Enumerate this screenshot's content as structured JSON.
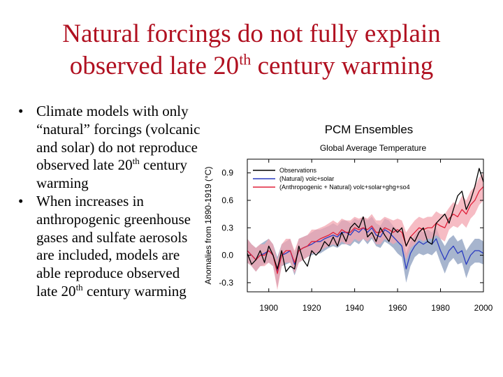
{
  "slide": {
    "title_line1": "Natural forcings do not fully explain",
    "title_line2_pre": "observed late 20",
    "title_line2_sup": "th",
    "title_line2_post": " century warming",
    "bullets": [
      {
        "pre": "Climate models with only “natural” forcings (volcanic and solar) do not reproduce observed late 20",
        "sup": "th",
        "post": " century warming"
      },
      {
        "pre": "When increases in anthropogenic greenhouse gases and sulfate aerosols are included, models are able reproduce observed late 20",
        "sup": "th",
        "post": " century warming"
      }
    ]
  },
  "chart_data": {
    "type": "line",
    "title": "PCM Ensembles",
    "subtitle": "Global Average Temperature",
    "ylabel": "Anomalies from 1890-1919 (°C)",
    "xlabel": "",
    "xlim": [
      1890,
      2000
    ],
    "ylim": [
      -0.4,
      1.05
    ],
    "xticks": [
      1900,
      1920,
      1940,
      1960,
      1980,
      2000
    ],
    "yticks": [
      -0.3,
      0.0,
      0.3,
      0.6,
      0.9
    ],
    "ytick_labels": [
      "-0.3",
      "0.0",
      "0.3",
      "0.6",
      "0.9"
    ],
    "legend_position": "top-left",
    "grid": false,
    "series": [
      {
        "name": "Observations",
        "color": "#000000",
        "x": [
          1890,
          1892,
          1894,
          1896,
          1898,
          1900,
          1902,
          1904,
          1906,
          1908,
          1910,
          1912,
          1914,
          1916,
          1918,
          1920,
          1922,
          1924,
          1926,
          1928,
          1930,
          1932,
          1934,
          1936,
          1938,
          1940,
          1942,
          1944,
          1946,
          1948,
          1950,
          1952,
          1954,
          1956,
          1958,
          1960,
          1962,
          1964,
          1966,
          1968,
          1970,
          1972,
          1974,
          1976,
          1978,
          1980,
          1982,
          1984,
          1986,
          1988,
          1990,
          1992,
          1994,
          1996,
          1998,
          2000
        ],
        "y": [
          0.02,
          -0.1,
          -0.05,
          0.05,
          -0.08,
          0.1,
          0.0,
          -0.15,
          0.05,
          -0.18,
          -0.12,
          -0.15,
          0.1,
          -0.05,
          -0.12,
          0.05,
          0.0,
          0.05,
          0.15,
          0.1,
          0.2,
          0.1,
          0.25,
          0.15,
          0.3,
          0.35,
          0.3,
          0.42,
          0.2,
          0.25,
          0.15,
          0.3,
          0.22,
          0.15,
          0.3,
          0.25,
          0.3,
          0.1,
          0.2,
          0.15,
          0.25,
          0.3,
          0.15,
          0.12,
          0.35,
          0.4,
          0.45,
          0.35,
          0.5,
          0.65,
          0.7,
          0.5,
          0.6,
          0.75,
          0.95,
          0.8
        ]
      },
      {
        "name": "(Natural) volc+solar",
        "color": "#2a3bc0",
        "band_color": "#8a9cbd",
        "x": [
          1890,
          1892,
          1894,
          1896,
          1898,
          1900,
          1902,
          1904,
          1906,
          1908,
          1910,
          1912,
          1914,
          1916,
          1918,
          1920,
          1922,
          1924,
          1926,
          1928,
          1930,
          1932,
          1934,
          1936,
          1938,
          1940,
          1942,
          1944,
          1946,
          1948,
          1950,
          1952,
          1954,
          1956,
          1958,
          1960,
          1962,
          1964,
          1966,
          1968,
          1970,
          1972,
          1974,
          1976,
          1978,
          1980,
          1982,
          1984,
          1986,
          1988,
          1990,
          1992,
          1994,
          1996,
          1998,
          2000
        ],
        "y": [
          0.05,
          0.0,
          -0.05,
          0.0,
          0.02,
          0.05,
          0.0,
          -0.18,
          0.0,
          0.02,
          0.05,
          -0.1,
          0.05,
          0.08,
          0.1,
          0.12,
          0.15,
          0.15,
          0.18,
          0.2,
          0.22,
          0.2,
          0.25,
          0.25,
          0.22,
          0.28,
          0.25,
          0.3,
          0.25,
          0.3,
          0.22,
          0.2,
          0.28,
          0.25,
          0.2,
          0.15,
          0.1,
          -0.15,
          0.02,
          0.1,
          0.15,
          0.12,
          0.15,
          0.12,
          0.18,
          0.05,
          -0.05,
          0.05,
          0.1,
          0.02,
          0.05,
          -0.1,
          0.0,
          0.05,
          0.05,
          0.02
        ],
        "band_lower": [
          -0.08,
          -0.12,
          -0.18,
          -0.12,
          -0.1,
          -0.08,
          -0.12,
          -0.35,
          -0.12,
          -0.1,
          -0.08,
          -0.22,
          -0.08,
          -0.05,
          -0.02,
          0.0,
          0.02,
          0.02,
          0.05,
          0.08,
          0.1,
          0.08,
          0.12,
          0.12,
          0.1,
          0.15,
          0.12,
          0.18,
          0.12,
          0.18,
          0.1,
          0.08,
          0.15,
          0.12,
          0.08,
          0.02,
          -0.02,
          -0.3,
          -0.12,
          -0.02,
          0.02,
          0.0,
          0.02,
          0.0,
          0.05,
          -0.08,
          -0.2,
          -0.08,
          -0.03,
          -0.1,
          -0.08,
          -0.25,
          -0.12,
          -0.08,
          -0.08,
          -0.1
        ],
        "band_upper": [
          0.18,
          0.12,
          0.08,
          0.12,
          0.15,
          0.18,
          0.12,
          -0.02,
          0.12,
          0.15,
          0.18,
          0.02,
          0.18,
          0.2,
          0.22,
          0.25,
          0.28,
          0.28,
          0.3,
          0.32,
          0.35,
          0.32,
          0.38,
          0.38,
          0.35,
          0.4,
          0.38,
          0.42,
          0.38,
          0.42,
          0.35,
          0.32,
          0.4,
          0.38,
          0.32,
          0.28,
          0.22,
          0.02,
          0.15,
          0.22,
          0.28,
          0.25,
          0.28,
          0.25,
          0.3,
          0.18,
          0.1,
          0.18,
          0.22,
          0.15,
          0.18,
          0.05,
          0.12,
          0.18,
          0.18,
          0.15
        ]
      },
      {
        "name": "(Anthropogenic + Natural) volc+solar+ghg+so4",
        "color": "#e0203a",
        "band_color": "#f3a5b0",
        "x": [
          1890,
          1892,
          1894,
          1896,
          1898,
          1900,
          1902,
          1904,
          1906,
          1908,
          1910,
          1912,
          1914,
          1916,
          1918,
          1920,
          1922,
          1924,
          1926,
          1928,
          1930,
          1932,
          1934,
          1936,
          1938,
          1940,
          1942,
          1944,
          1946,
          1948,
          1950,
          1952,
          1954,
          1956,
          1958,
          1960,
          1962,
          1964,
          1966,
          1968,
          1970,
          1972,
          1974,
          1976,
          1978,
          1980,
          1982,
          1984,
          1986,
          1988,
          1990,
          1992,
          1994,
          1996,
          1998,
          2000
        ],
        "y": [
          0.05,
          0.0,
          -0.05,
          0.0,
          0.0,
          0.05,
          0.0,
          -0.2,
          0.0,
          0.05,
          0.05,
          -0.08,
          0.05,
          0.08,
          0.1,
          0.15,
          0.15,
          0.18,
          0.2,
          0.22,
          0.25,
          0.22,
          0.28,
          0.25,
          0.25,
          0.3,
          0.28,
          0.3,
          0.28,
          0.32,
          0.25,
          0.25,
          0.3,
          0.28,
          0.25,
          0.28,
          0.25,
          0.1,
          0.2,
          0.25,
          0.3,
          0.28,
          0.3,
          0.3,
          0.35,
          0.32,
          0.3,
          0.4,
          0.45,
          0.42,
          0.5,
          0.45,
          0.55,
          0.6,
          0.7,
          0.75
        ],
        "band_lower": [
          -0.08,
          -0.12,
          -0.18,
          -0.12,
          -0.12,
          -0.08,
          -0.12,
          -0.38,
          -0.12,
          -0.08,
          -0.08,
          -0.2,
          -0.08,
          -0.05,
          -0.02,
          0.02,
          0.02,
          0.05,
          0.08,
          0.1,
          0.12,
          0.1,
          0.15,
          0.12,
          0.12,
          0.18,
          0.15,
          0.18,
          0.15,
          0.2,
          0.12,
          0.12,
          0.18,
          0.15,
          0.12,
          0.15,
          0.12,
          -0.05,
          0.08,
          0.12,
          0.18,
          0.15,
          0.18,
          0.18,
          0.22,
          0.18,
          0.15,
          0.28,
          0.32,
          0.3,
          0.35,
          0.3,
          0.4,
          0.45,
          0.55,
          0.6
        ],
        "band_upper": [
          0.18,
          0.12,
          0.08,
          0.12,
          0.12,
          0.18,
          0.12,
          -0.05,
          0.12,
          0.18,
          0.18,
          0.05,
          0.18,
          0.2,
          0.22,
          0.28,
          0.28,
          0.3,
          0.32,
          0.35,
          0.38,
          0.35,
          0.4,
          0.38,
          0.38,
          0.42,
          0.4,
          0.42,
          0.4,
          0.45,
          0.38,
          0.38,
          0.42,
          0.4,
          0.38,
          0.4,
          0.38,
          0.25,
          0.32,
          0.38,
          0.42,
          0.4,
          0.42,
          0.42,
          0.48,
          0.45,
          0.45,
          0.52,
          0.58,
          0.55,
          0.65,
          0.6,
          0.7,
          0.75,
          0.85,
          0.9
        ]
      }
    ]
  }
}
